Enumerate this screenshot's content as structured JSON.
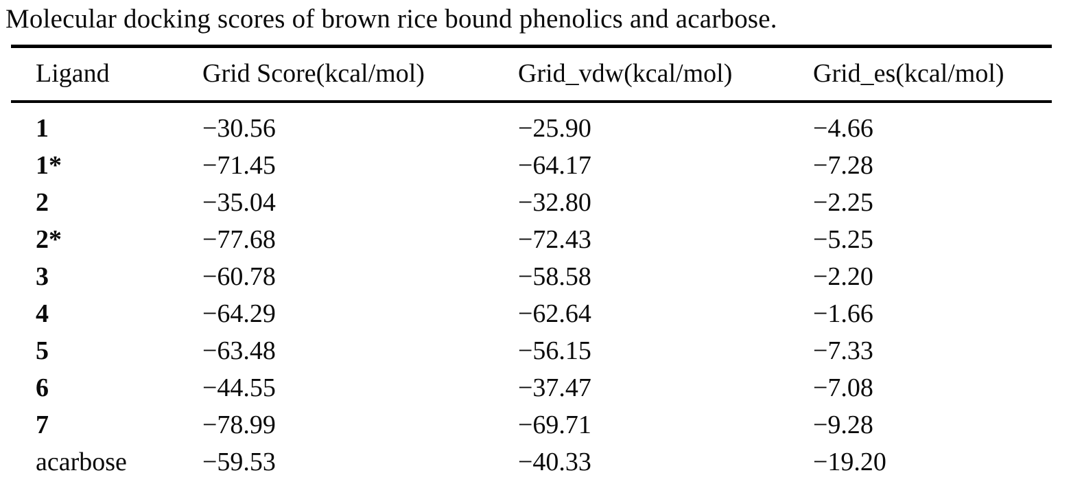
{
  "caption": "Molecular docking scores of brown rice bound phenolics and acarbose.",
  "table": {
    "columns": [
      "Ligand",
      "Grid Score(kcal/mol)",
      "Grid_vdw(kcal/mol)",
      "Grid_es(kcal/mol)"
    ],
    "rows": [
      {
        "ligand": "1",
        "grid_score": "−30.56",
        "grid_vdw": "−25.90",
        "grid_es": "−4.66"
      },
      {
        "ligand": "1*",
        "grid_score": "−71.45",
        "grid_vdw": "−64.17",
        "grid_es": "−7.28"
      },
      {
        "ligand": "2",
        "grid_score": "−35.04",
        "grid_vdw": "−32.80",
        "grid_es": "−2.25"
      },
      {
        "ligand": "2*",
        "grid_score": "−77.68",
        "grid_vdw": "−72.43",
        "grid_es": "−5.25"
      },
      {
        "ligand": "3",
        "grid_score": "−60.78",
        "grid_vdw": "−58.58",
        "grid_es": "−2.20"
      },
      {
        "ligand": "4",
        "grid_score": "−64.29",
        "grid_vdw": "−62.64",
        "grid_es": "−1.66"
      },
      {
        "ligand": "5",
        "grid_score": "−63.48",
        "grid_vdw": "−56.15",
        "grid_es": "−7.33"
      },
      {
        "ligand": "6",
        "grid_score": "−44.55",
        "grid_vdw": "−37.47",
        "grid_es": "−7.08"
      },
      {
        "ligand": "7",
        "grid_score": "−78.99",
        "grid_vdw": "−69.71",
        "grid_es": "−9.28"
      },
      {
        "ligand": "acarbose",
        "grid_score": "−59.53",
        "grid_vdw": "−40.33",
        "grid_es": "−19.20"
      }
    ]
  }
}
